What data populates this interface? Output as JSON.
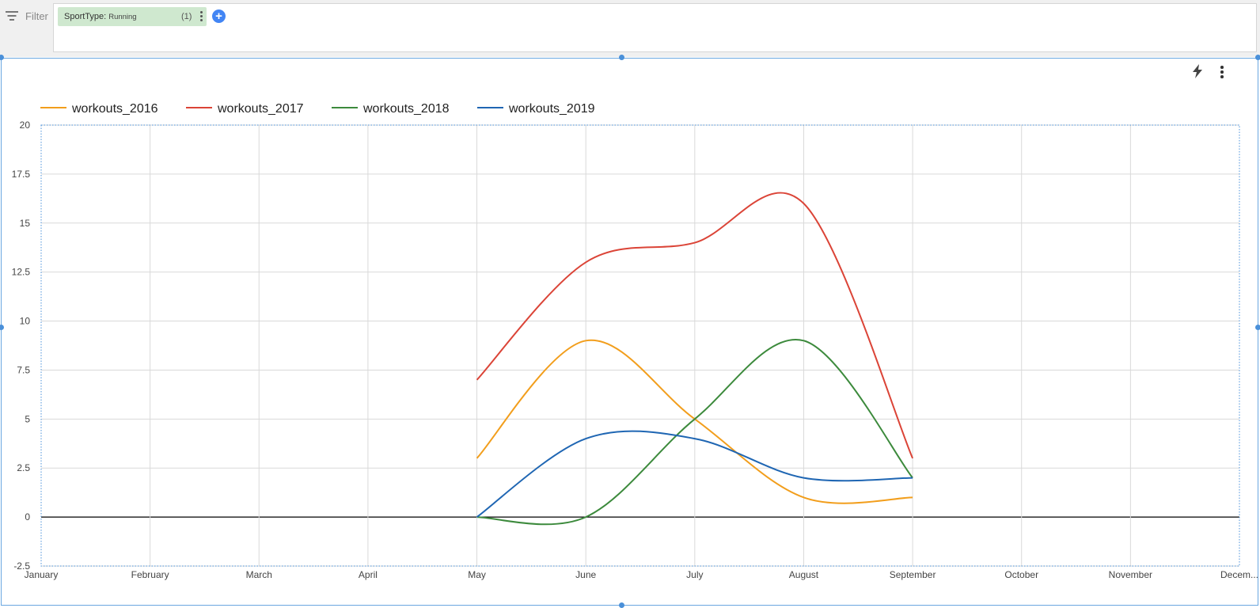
{
  "filter": {
    "label": "Filter",
    "icon": "filter-icon",
    "chip": {
      "field": "SportType:",
      "value": "Running",
      "count": "(1)"
    },
    "add_icon": "plus-icon"
  },
  "toolbar": {
    "icons": [
      "bolt-icon",
      "more-vert-icon"
    ]
  },
  "chart_data": {
    "type": "line",
    "smooth": true,
    "categories": [
      "January",
      "February",
      "March",
      "April",
      "May",
      "June",
      "July",
      "August",
      "September",
      "October",
      "November",
      "Decem..."
    ],
    "series": [
      {
        "name": "workouts_2016",
        "color": "#f29e1c",
        "values": [
          null,
          null,
          null,
          null,
          3,
          9,
          5,
          1,
          1,
          null,
          null,
          null
        ]
      },
      {
        "name": "workouts_2017",
        "color": "#db4437",
        "values": [
          null,
          null,
          null,
          null,
          7,
          13,
          14,
          16,
          3,
          null,
          null,
          null
        ]
      },
      {
        "name": "workouts_2018",
        "color": "#3c8a3c",
        "values": [
          null,
          null,
          null,
          null,
          0,
          0,
          5,
          9,
          2,
          null,
          null,
          null
        ]
      },
      {
        "name": "workouts_2019",
        "color": "#1f66b3",
        "values": [
          null,
          null,
          null,
          null,
          0,
          4,
          4,
          2,
          2,
          null,
          null,
          null
        ]
      }
    ],
    "yticks": [
      "20",
      "17.5",
      "15",
      "12.5",
      "10",
      "7.5",
      "5",
      "2.5",
      "0",
      "-2.5"
    ],
    "ylim": [
      -2.5,
      20
    ],
    "grid": true,
    "legend": "top-left"
  }
}
